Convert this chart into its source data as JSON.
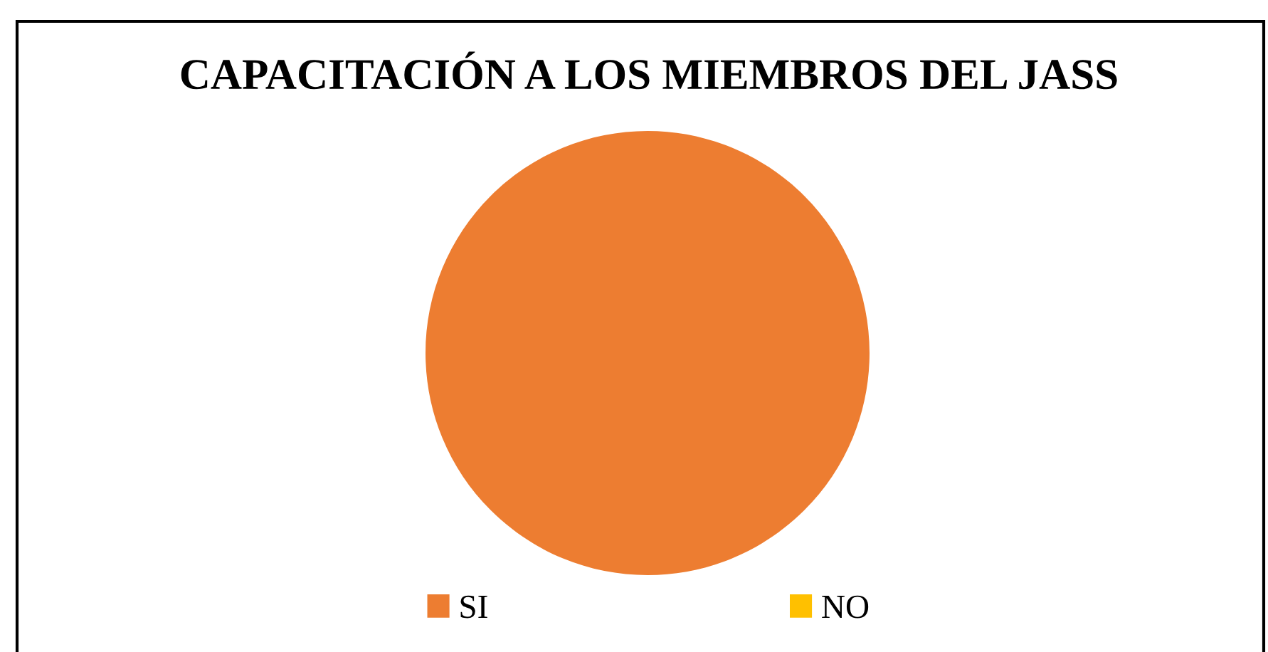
{
  "chart_data": {
    "type": "pie",
    "title": "CAPACITACIÓN A LOS MIEMBROS DEL JASS",
    "categories": [
      "SI",
      "NO"
    ],
    "values": [
      100,
      0
    ],
    "colors": [
      "#ed7d31",
      "#ffc000"
    ],
    "legend": "bottom"
  }
}
